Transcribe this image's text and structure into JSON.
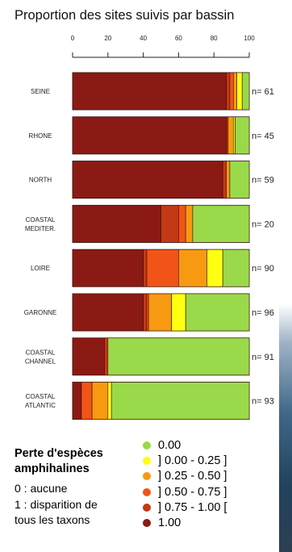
{
  "chart_data": {
    "type": "bar",
    "orientation": "horizontal",
    "stacked": true,
    "title": "Proportion des sites suivis par bassin",
    "xlim": [
      0,
      100
    ],
    "xticks": [
      0,
      20,
      40,
      60,
      80,
      100
    ],
    "categories": [
      {
        "label": [
          "SEINE"
        ],
        "n": "n= 61"
      },
      {
        "label": [
          "RHONE"
        ],
        "n": "n= 45"
      },
      {
        "label": [
          "NORTH"
        ],
        "n": "n= 59"
      },
      {
        "label": [
          "COASTAL",
          "MEDITER."
        ],
        "n": "n= 20"
      },
      {
        "label": [
          "LOIRE"
        ],
        "n": "n= 90"
      },
      {
        "label": [
          "GARONNE"
        ],
        "n": "n= 96"
      },
      {
        "label": [
          "COASTAL",
          "CHANNEL"
        ],
        "n": "n= 91"
      },
      {
        "label": [
          "COASTAL",
          "ATLANTIC"
        ],
        "n": "n= 93"
      }
    ],
    "series": [
      {
        "name": "1.00",
        "color": "#8b1a14",
        "values": [
          87,
          87,
          85,
          50,
          40,
          40,
          18,
          5
        ]
      },
      {
        "name": "] 0.75 - 1.00 [",
        "color": "#c33915",
        "values": [
          2,
          1,
          2,
          10,
          2,
          2,
          2,
          0
        ]
      },
      {
        "name": "] 0.50 - 0.75 ]",
        "color": "#f25418",
        "values": [
          2,
          0,
          0,
          4,
          18,
          1,
          0,
          6
        ]
      },
      {
        "name": "] 0.25 - 0.50 ]",
        "color": "#f79a12",
        "values": [
          2,
          3,
          2,
          4,
          16,
          13,
          0,
          9
        ]
      },
      {
        "name": "] 0.00 - 0.25 ]",
        "color": "#ffff12",
        "values": [
          3,
          1,
          0,
          0,
          9,
          8,
          0,
          2
        ]
      },
      {
        "name": "0.00",
        "color": "#9ad94a",
        "values": [
          4,
          8,
          11,
          32,
          15,
          36,
          80,
          78
        ]
      }
    ]
  },
  "legend": {
    "title": "Perte d'espèces amphihalines",
    "notes": [
      "0 : aucune",
      "1 : disparition de",
      "tous les taxons"
    ],
    "items": [
      {
        "label": "0.00",
        "color": "#9ad94a"
      },
      {
        "label": "] 0.00 - 0.25 ]",
        "color": "#ffff12"
      },
      {
        "label": "] 0.25 - 0.50 ]",
        "color": "#f79a12"
      },
      {
        "label": "] 0.50 - 0.75 ]",
        "color": "#f25418"
      },
      {
        "label": "] 0.75 - 1.00 [",
        "color": "#c33915"
      },
      {
        "label": "1.00",
        "color": "#8b1a14"
      }
    ]
  }
}
